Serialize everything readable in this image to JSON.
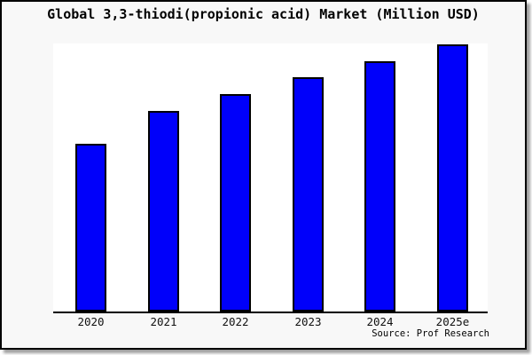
{
  "title": "Global 3,3-thiodi(propionic acid) Market (Million USD)",
  "source": "Source: Prof Research",
  "colors": {
    "bar_fill": "#0000fa",
    "bar_border": "#000000",
    "canvas_background": "#f8f8f8",
    "plot_background": "#ffffff",
    "axis": "#000000",
    "text": "#000000"
  },
  "chart_data": {
    "type": "bar",
    "title": "Global 3,3-thiodi(propionic acid) Market (Million USD)",
    "categories": [
      "2020",
      "2021",
      "2022",
      "2023",
      "2024",
      "2025e"
    ],
    "values": [
      189,
      226,
      245,
      264,
      282,
      301
    ],
    "values_basis": "relative bar heights in pixels; no y-axis scale or value labels shown",
    "xlabel": "",
    "ylabel": "",
    "grid": false,
    "legend": false,
    "annotations": [
      "Source: Prof Research"
    ]
  }
}
